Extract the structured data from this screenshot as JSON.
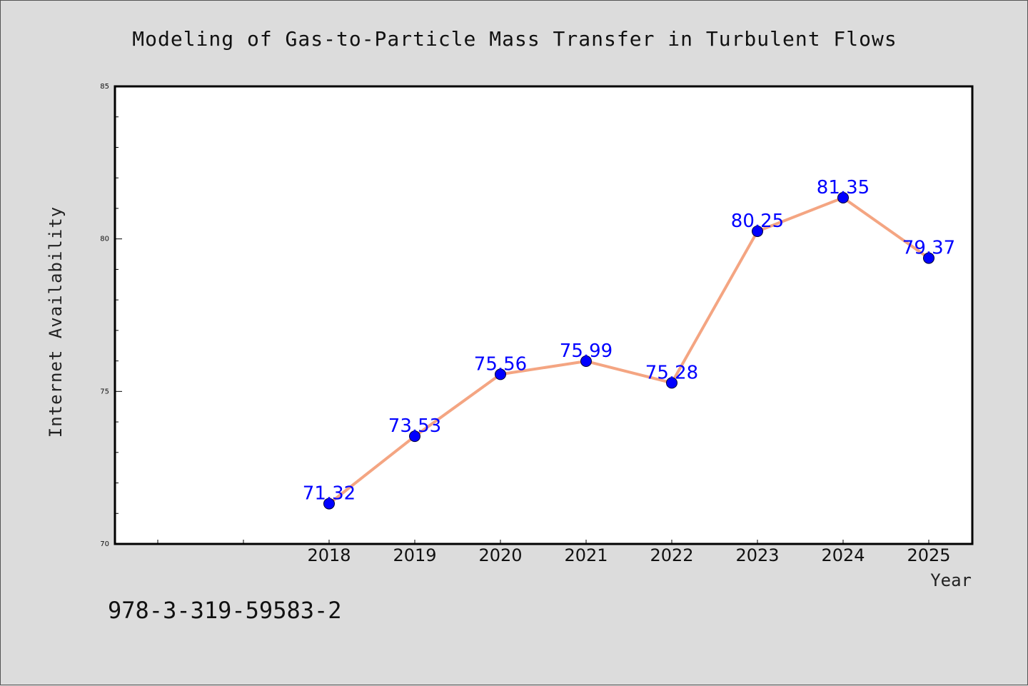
{
  "chart_data": {
    "type": "line",
    "title": "Modeling of Gas-to-Particle Mass Transfer in Turbulent Flows",
    "xlabel": "Year",
    "ylabel": "Internet Availability",
    "categories": [
      "2018",
      "2019",
      "2020",
      "2021",
      "2022",
      "2023",
      "2024",
      "2025"
    ],
    "values": [
      71.32,
      73.53,
      75.56,
      75.99,
      75.28,
      80.25,
      81.35,
      79.37
    ],
    "data_labels": [
      "71.32",
      "73.53",
      "75.56",
      "75.99",
      "75.28",
      "80.25",
      "81.35",
      "79.37"
    ],
    "ylim": [
      70,
      85
    ],
    "yticks": [
      "70",
      "75",
      "80",
      "85"
    ],
    "grid": false,
    "line_color": "#f4a582",
    "marker_color": "#0000ff",
    "label_color": "#0000ff"
  },
  "footer": {
    "isbn": "978-3-319-59583-2"
  }
}
